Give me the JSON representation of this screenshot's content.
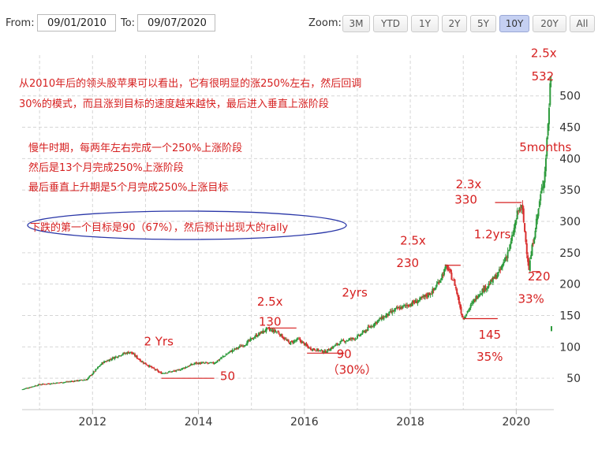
{
  "range": {
    "from_label": "From:",
    "from_value": "09/01/2010",
    "to_label": "To:",
    "to_value": "09/07/2020"
  },
  "zoom": {
    "label": "Zoom:",
    "options": [
      "3M",
      "YTD",
      "1Y",
      "2Y",
      "5Y",
      "10Y",
      "20Y",
      "All"
    ],
    "active": "10Y"
  },
  "notes": {
    "line1": "从2010年后的领头股苹果可以看出，它有很明显的涨250%左右，然后回调",
    "line2": "30%的模式，而且涨到目标的速度越来越快，最后进入垂直上涨阶段",
    "line3": "慢牛时期，每两年左右完成一个250%上涨阶段",
    "line4": "然后是13个月完成250%上涨阶段",
    "line5": "最后垂直上升期是5个月完成250%上涨目标",
    "boxed": "下跌的第一个目标是90（67%），然后预计出现大的rally"
  },
  "chart_data": {
    "type": "candlestick",
    "x_ticks": [
      "2012",
      "2014",
      "2016",
      "2018",
      "2020"
    ],
    "y_ticks": [
      50,
      100,
      150,
      200,
      250,
      300,
      350,
      400,
      450,
      500
    ],
    "ylim": [
      0,
      550
    ],
    "xlim": [
      2010.67,
      2020.68
    ],
    "grid": true,
    "price_path": [
      [
        2010.67,
        32
      ],
      [
        2011.0,
        40
      ],
      [
        2011.5,
        44
      ],
      [
        2011.9,
        48
      ],
      [
        2012.2,
        75
      ],
      [
        2012.55,
        88
      ],
      [
        2012.72,
        92
      ],
      [
        2012.95,
        76
      ],
      [
        2013.3,
        58
      ],
      [
        2013.6,
        62
      ],
      [
        2013.95,
        74
      ],
      [
        2014.3,
        74
      ],
      [
        2014.6,
        92
      ],
      [
        2014.9,
        105
      ],
      [
        2015.1,
        118
      ],
      [
        2015.3,
        128
      ],
      [
        2015.5,
        124
      ],
      [
        2015.72,
        106
      ],
      [
        2015.9,
        112
      ],
      [
        2016.1,
        98
      ],
      [
        2016.4,
        92
      ],
      [
        2016.7,
        108
      ],
      [
        2017.0,
        115
      ],
      [
        2017.4,
        142
      ],
      [
        2017.75,
        160
      ],
      [
        2018.0,
        168
      ],
      [
        2018.2,
        175
      ],
      [
        2018.45,
        190
      ],
      [
        2018.7,
        228
      ],
      [
        2018.85,
        200
      ],
      [
        2019.0,
        145
      ],
      [
        2019.3,
        185
      ],
      [
        2019.5,
        200
      ],
      [
        2019.7,
        220
      ],
      [
        2019.9,
        262
      ],
      [
        2020.05,
        318
      ],
      [
        2020.12,
        322
      ],
      [
        2020.2,
        260
      ],
      [
        2020.25,
        225
      ],
      [
        2020.35,
        280
      ],
      [
        2020.45,
        330
      ],
      [
        2020.55,
        380
      ],
      [
        2020.62,
        470
      ],
      [
        2020.66,
        532
      ]
    ],
    "level_lines": [
      {
        "from": 2013.3,
        "to": 2014.3,
        "value": 50
      },
      {
        "from": 2015.3,
        "to": 2015.85,
        "value": 130
      },
      {
        "from": 2016.05,
        "to": 2016.75,
        "value": 90
      },
      {
        "from": 2018.65,
        "to": 2018.95,
        "value": 230
      },
      {
        "from": 2019.0,
        "to": 2019.65,
        "value": 145
      },
      {
        "from": 2019.6,
        "to": 2020.1,
        "value": 330
      },
      {
        "from": 2020.3,
        "to": 2020.45,
        "value": 220
      }
    ],
    "annotations": [
      {
        "text": "2 Yrs",
        "x": 2013.25,
        "y": 102
      },
      {
        "text": "50",
        "x": 2014.55,
        "y": 47
      },
      {
        "text": "2.5x",
        "x": 2015.35,
        "y": 166
      },
      {
        "text": "130",
        "x": 2015.35,
        "y": 134
      },
      {
        "text": "90",
        "x": 2016.75,
        "y": 82
      },
      {
        "text": "（30%）",
        "x": 2016.9,
        "y": 57
      },
      {
        "text": "2yrs",
        "x": 2016.95,
        "y": 180
      },
      {
        "text": "2.5x",
        "x": 2018.05,
        "y": 263
      },
      {
        "text": "230",
        "x": 2017.95,
        "y": 227
      },
      {
        "text": "145",
        "x": 2019.5,
        "y": 113
      },
      {
        "text": "35%",
        "x": 2019.5,
        "y": 78
      },
      {
        "text": "2.3x",
        "x": 2019.1,
        "y": 353
      },
      {
        "text": "330",
        "x": 2019.05,
        "y": 328
      },
      {
        "text": "1.2yrs",
        "x": 2019.55,
        "y": 273
      },
      {
        "text": "220",
        "x": 2020.43,
        "y": 206
      },
      {
        "text": "33%",
        "x": 2020.28,
        "y": 170
      },
      {
        "text": "5months",
        "x": 2020.55,
        "y": 412
      },
      {
        "text": "2.5x",
        "x": 2020.52,
        "y": 562
      },
      {
        "text": "532",
        "x": 2020.5,
        "y": 525
      }
    ]
  }
}
